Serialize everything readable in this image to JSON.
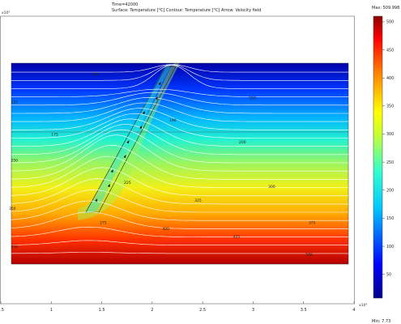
{
  "header": {
    "time_label": "Time=42000",
    "legend_line": "Surface: Temperature [°C]   Contour: Temperature [°C]   Arrow: Velocity field"
  },
  "chart_data": {
    "type": "heatmap",
    "xlabel": "",
    "ylabel": "",
    "x_exponent_label": "x10⁴",
    "y_exponent_label": "x10⁴",
    "xlim": [
      0.5,
      4.0
    ],
    "x_ticks": [
      "0.5",
      "1",
      "1.5",
      "2",
      "2.5",
      "3",
      "3.5",
      "4"
    ],
    "x_tick_values": [
      0.5,
      1.0,
      1.5,
      2.0,
      2.5,
      3.0,
      3.5,
      4.0
    ],
    "surface_variable": "Temperature [°C]",
    "contour_variable": "Temperature [°C]",
    "arrow_variable": "Velocity field",
    "colorbar": {
      "max_label": "Max: 509.998",
      "min_label": "Min: 7.73",
      "max": 509.998,
      "min": 7.73,
      "ticks": [
        500,
        450,
        400,
        350,
        300,
        250,
        200,
        150,
        100,
        50
      ]
    },
    "contour_labels": [
      {
        "text": "100",
        "x": 1.4,
        "y": 0.94
      },
      {
        "text": "125",
        "x": 0.6,
        "y": 0.8
      },
      {
        "text": "150",
        "x": 2.96,
        "y": 0.82
      },
      {
        "text": "175",
        "x": 1.0,
        "y": 0.64
      },
      {
        "text": "190",
        "x": 2.17,
        "y": 0.71
      },
      {
        "text": "200",
        "x": 2.86,
        "y": 0.6
      },
      {
        "text": "225",
        "x": 1.72,
        "y": 0.4
      },
      {
        "text": "250",
        "x": 0.6,
        "y": 0.51
      },
      {
        "text": "275",
        "x": 1.48,
        "y": 0.2
      },
      {
        "text": "300",
        "x": 3.15,
        "y": 0.38
      },
      {
        "text": "325",
        "x": 2.42,
        "y": 0.31
      },
      {
        "text": "350",
        "x": 0.58,
        "y": 0.27
      },
      {
        "text": "375",
        "x": 3.55,
        "y": 0.2
      },
      {
        "text": "400",
        "x": 2.1,
        "y": 0.17
      },
      {
        "text": "425",
        "x": 2.8,
        "y": 0.13
      },
      {
        "text": "450",
        "x": 0.6,
        "y": 0.08
      },
      {
        "text": "500",
        "x": 3.52,
        "y": 0.04
      }
    ],
    "grid": false
  }
}
